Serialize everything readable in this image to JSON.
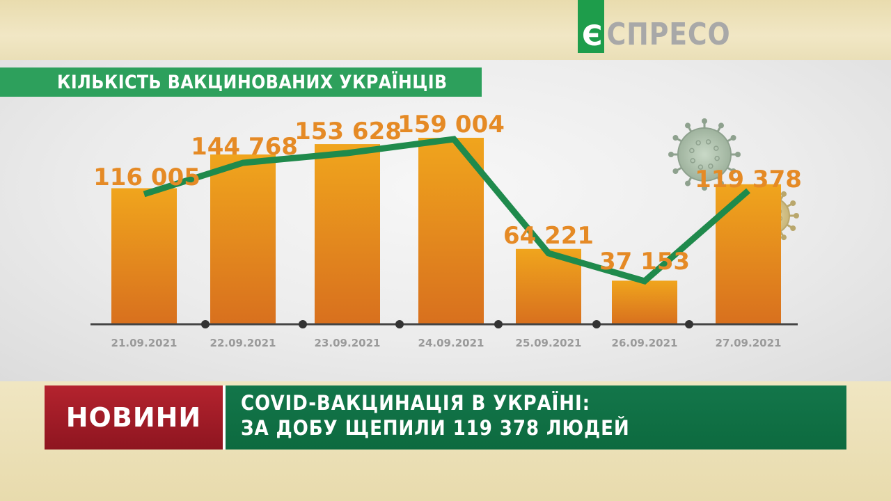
{
  "brand": {
    "logo_letter": "Є",
    "logo_text": "СПРЕСО",
    "logo_color": "#1e9d4b"
  },
  "chart_data": {
    "type": "bar",
    "title": "КІЛЬКІСТЬ ВАКЦИНОВАНИХ УКРАЇНЦІВ",
    "categories": [
      "21.09.2021",
      "22.09.2021",
      "23.09.2021",
      "24.09.2021",
      "25.09.2021",
      "26.09.2021",
      "27.09.2021"
    ],
    "values": [
      116005,
      144768,
      153628,
      159004,
      64221,
      37153,
      119378
    ],
    "value_labels": [
      "116 005",
      "144 768",
      "153 628",
      "159 004",
      "64 221",
      "37 153",
      "119 378"
    ],
    "overlay_line": true,
    "ylim": [
      0,
      165000
    ],
    "grid": false,
    "legend": "none",
    "bar_color": "#e8951f",
    "line_color": "#1f8a4c",
    "label_color": "#e58a25"
  },
  "ticker": {
    "tag": "НОВИНИ",
    "headline_line1": "COVID-ВАКЦИНАЦІЯ В УКРАЇНІ:",
    "headline_line2": "ЗА ДОБУ ЩЕПИЛИ 119 378 ЛЮДЕЙ",
    "tag_color": "#a51c28",
    "headline_color": "#0f6e44"
  }
}
